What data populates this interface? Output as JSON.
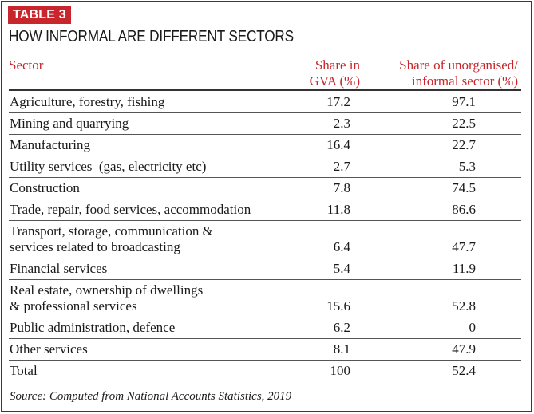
{
  "badge": "TABLE 3",
  "title": "HOW INFORMAL ARE DIFFERENT SECTORS",
  "headers": {
    "sector": "Sector",
    "gva_line1": "Share in",
    "gva_line2": "GVA (%)",
    "informal_line1": "Share of unorganised/",
    "informal_line2": "informal sector (%)"
  },
  "rows": [
    {
      "sector": "Agriculture, forestry, fishing",
      "gva": "17.2",
      "informal": "97.1"
    },
    {
      "sector": "Mining and quarrying",
      "gva": "2.3",
      "informal": "22.5"
    },
    {
      "sector": "Manufacturing",
      "gva": "16.4",
      "informal": "22.7"
    },
    {
      "sector": "Utility services  (gas, electricity etc)",
      "gva": "2.7",
      "informal": "5.3"
    },
    {
      "sector": "Construction",
      "gva": "7.8",
      "informal": "74.5"
    },
    {
      "sector": "Trade, repair, food services, accommodation",
      "gva": "11.8",
      "informal": "86.6"
    },
    {
      "sector_line1": "Transport, storage, communication &",
      "sector_line2": "services related to broadcasting",
      "gva": "6.4",
      "informal": "47.7"
    },
    {
      "sector": "Financial services",
      "gva": "5.4",
      "informal": "11.9"
    },
    {
      "sector_line1": "Real estate, ownership of dwellings",
      "sector_line2": "& professional services",
      "gva": "15.6",
      "informal": "52.8"
    },
    {
      "sector": "Public administration, defence",
      "gva": "6.2",
      "informal": "0"
    },
    {
      "sector": "Other services",
      "gva": "8.1",
      "informal": "47.9"
    },
    {
      "sector": "Total",
      "gva": "100",
      "informal": "52.4"
    }
  ],
  "source": "Source: Computed from National Accounts Statistics, 2019"
}
